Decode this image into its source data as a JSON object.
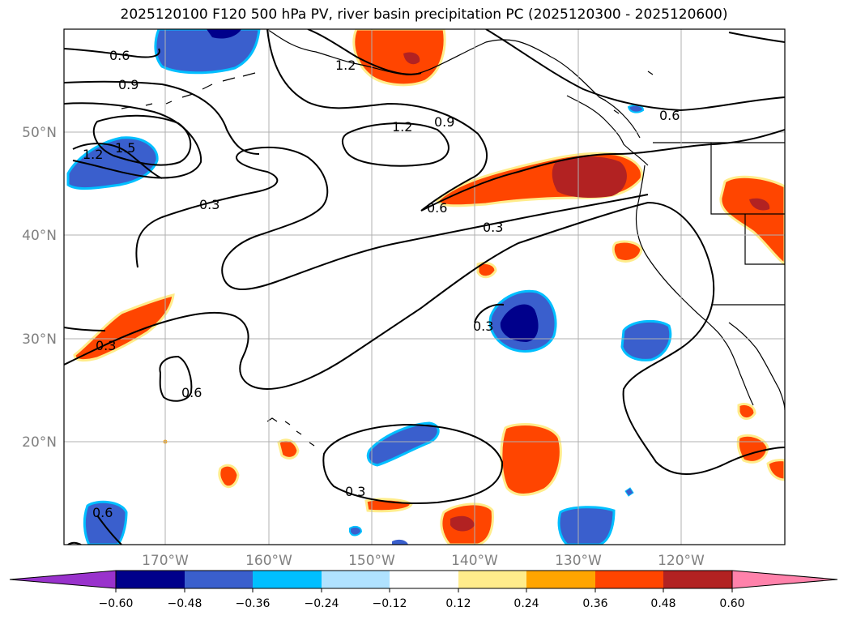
{
  "title": "2025120100 F120 500 hPa PV, river basin precipitation PC (2025120300 - 2025120600)",
  "map": {
    "lon_ticks": [
      "170°W",
      "160°W",
      "150°W",
      "140°W",
      "130°W",
      "120°W"
    ],
    "lat_ticks": [
      "50°N",
      "40°N",
      "30°N",
      "20°N"
    ],
    "contour_labels": [
      "0.6",
      "0.9",
      "1.2",
      "1.5",
      "1.2",
      "1.2",
      "0.9",
      "0.6",
      "0.3",
      "0.3",
      "0.3",
      "0.6",
      "0.3",
      "0.3",
      "0.6",
      "0.6"
    ]
  },
  "colorbar": {
    "ticks": [
      "−0.60",
      "−0.48",
      "−0.36",
      "−0.24",
      "−0.12",
      "0.12",
      "0.24",
      "0.36",
      "0.48",
      "0.60"
    ],
    "colors": {
      "low_extend": "#9932cc",
      "bins": [
        "#00008b",
        "#3a5fcd",
        "#00bfff",
        "#b0e2ff",
        "#ffffff",
        "#ffec8b",
        "#ffa500",
        "#ff4500",
        "#b22222"
      ],
      "high_extend": "#ff82ab"
    }
  }
}
